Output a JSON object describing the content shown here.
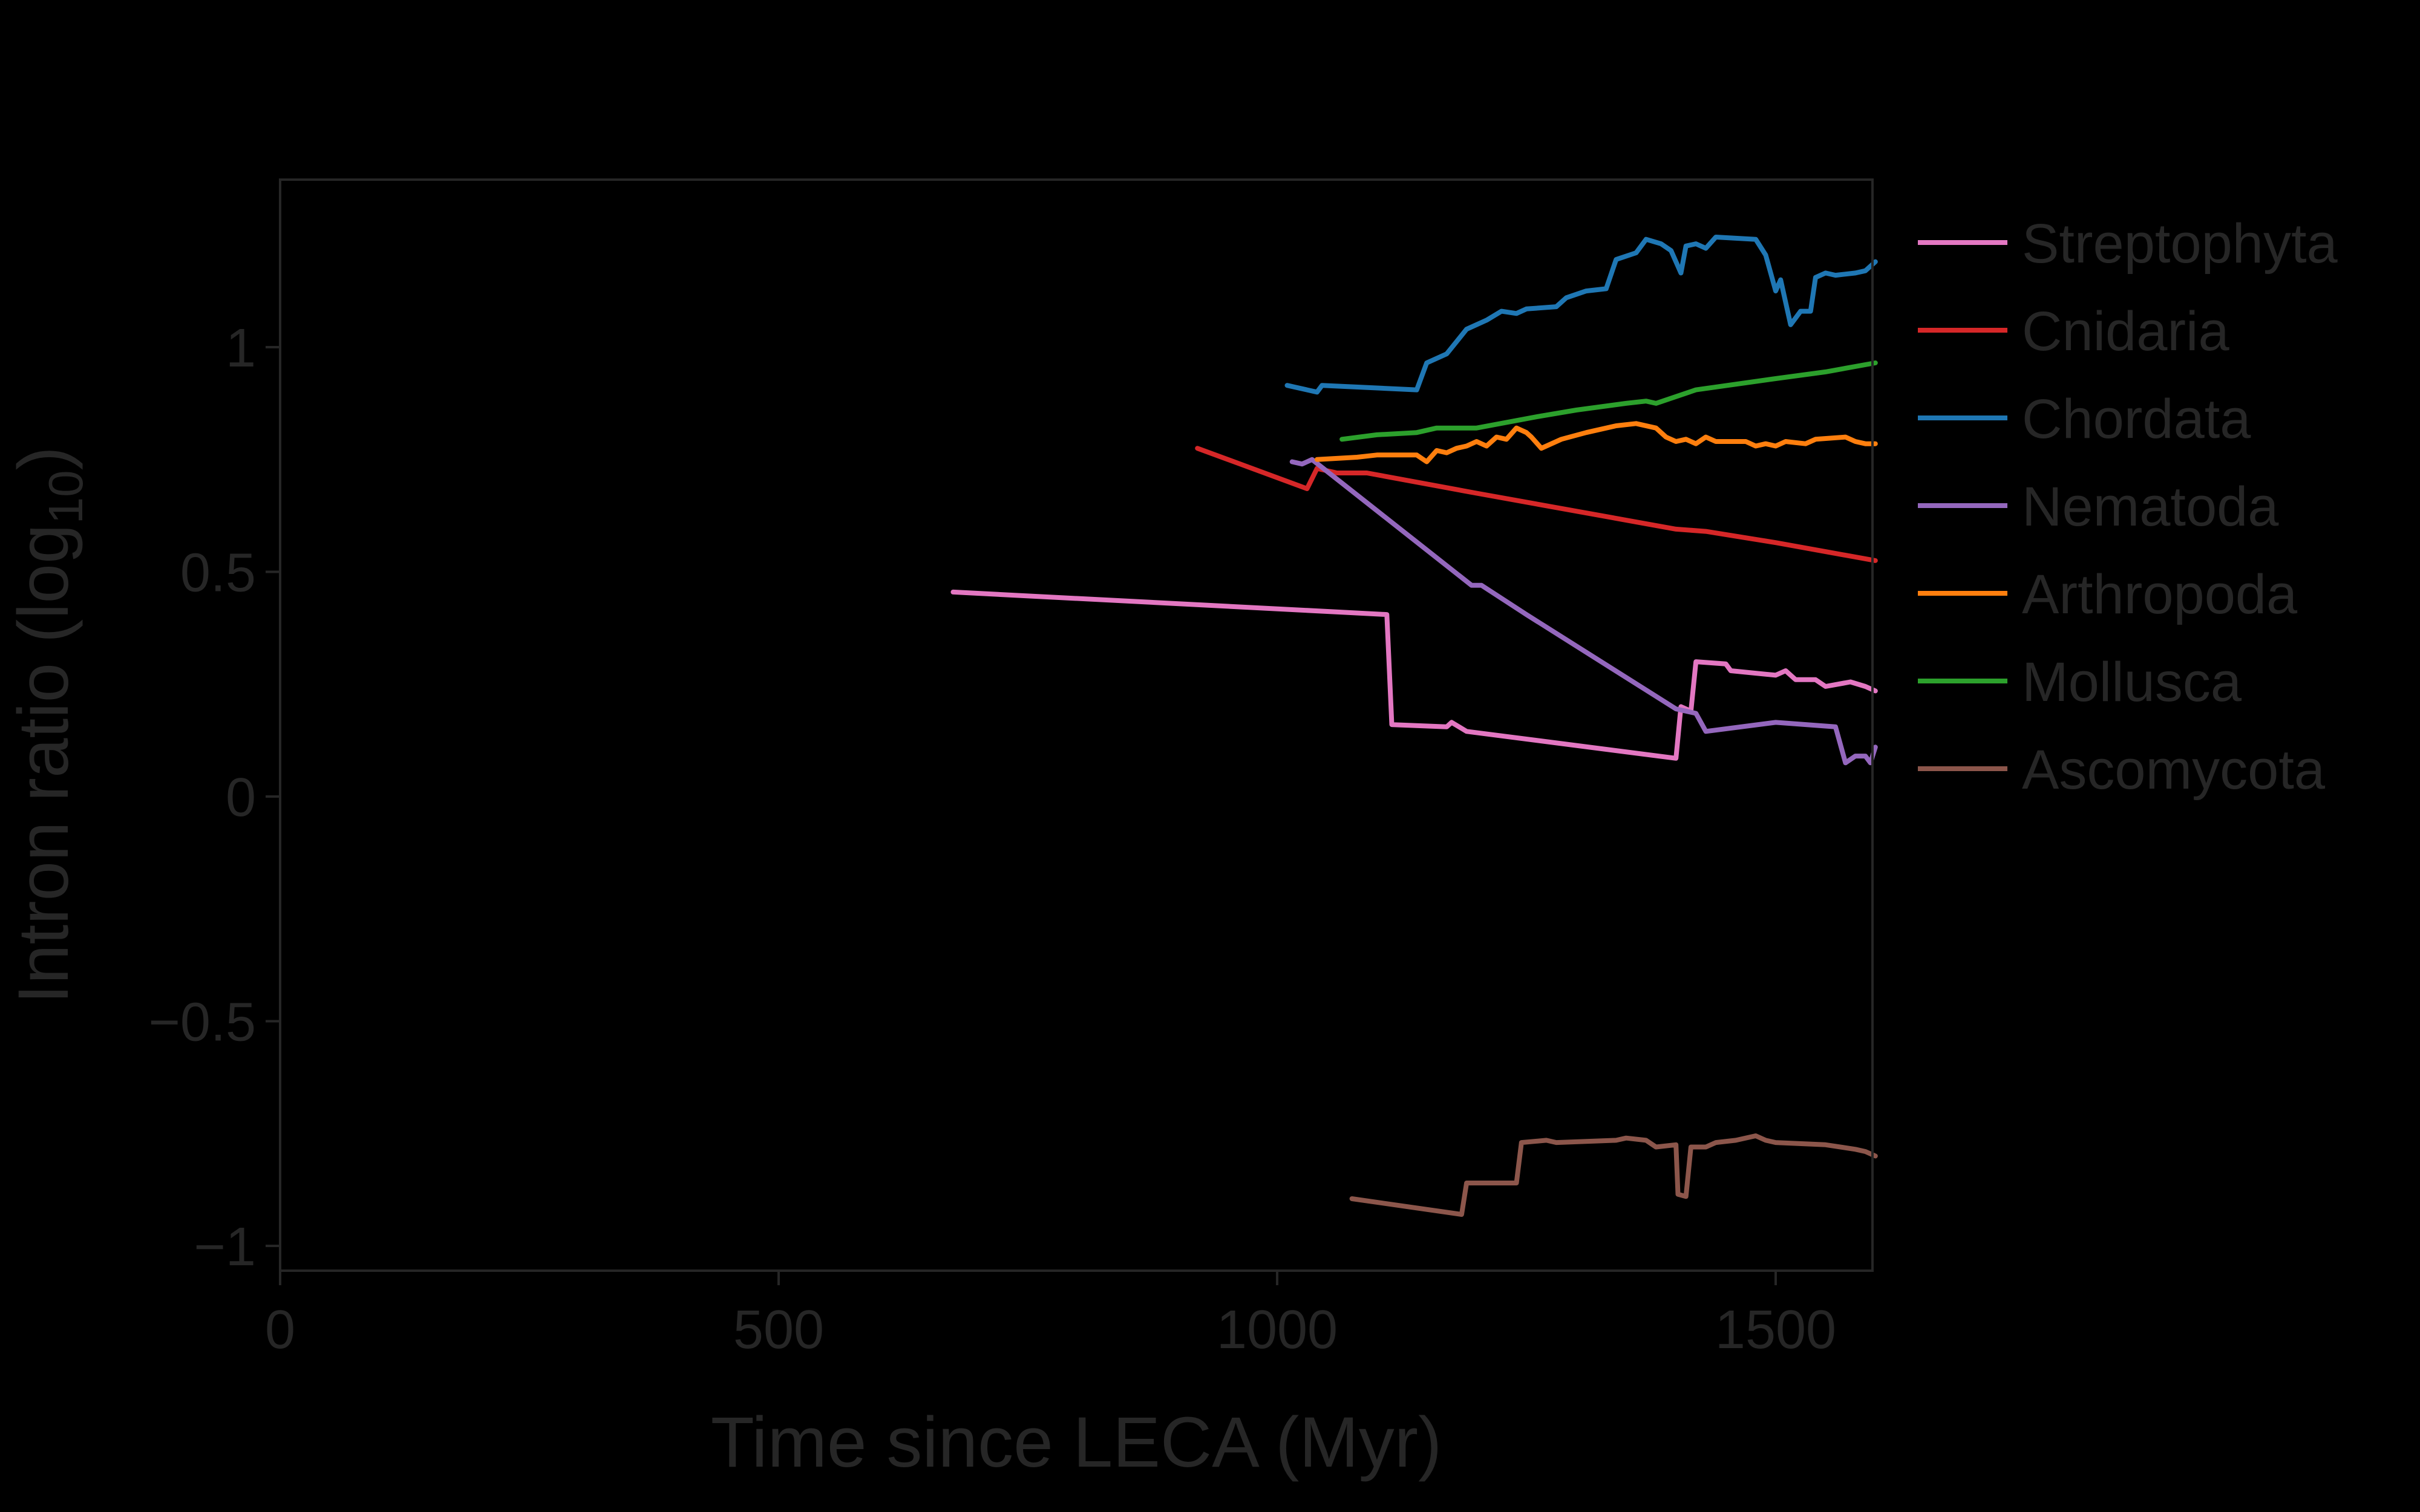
{
  "chart_data": {
    "type": "line",
    "title": "",
    "xlabel": "Time since LECA (Myr)",
    "ylabel_main": "Intron ratio (log",
    "ylabel_sub": "10",
    "ylabel_end": ")",
    "xlim": [
      0,
      1600
    ],
    "ylim": [
      -1.03,
      1.38
    ],
    "x_ticks": [
      0,
      500,
      1000,
      1500
    ],
    "x_tick_labels": [
      "0",
      "500",
      "1000",
      "1500"
    ],
    "y_ticks": [
      1,
      0.5,
      0,
      -0.5,
      -1
    ],
    "y_tick_labels": [
      "1",
      "0.5",
      "0",
      "−0.5",
      "−1"
    ],
    "grid": false,
    "legend_position": "outside-right-top",
    "series": [
      {
        "name": "Streptophyta",
        "color": "#e377c2",
        "points": [
          [
            675,
            0.455
          ],
          [
            1110,
            0.405
          ],
          [
            1115,
            0.16
          ],
          [
            1170,
            0.155
          ],
          [
            1175,
            0.165
          ],
          [
            1190,
            0.145
          ],
          [
            1400,
            0.085
          ],
          [
            1405,
            0.2
          ],
          [
            1415,
            0.19
          ],
          [
            1420,
            0.3
          ],
          [
            1450,
            0.295
          ],
          [
            1455,
            0.28
          ],
          [
            1500,
            0.27
          ],
          [
            1510,
            0.28
          ],
          [
            1520,
            0.26
          ],
          [
            1540,
            0.26
          ],
          [
            1550,
            0.245
          ],
          [
            1575,
            0.255
          ],
          [
            1590,
            0.245
          ],
          [
            1600,
            0.235
          ]
        ]
      },
      {
        "name": "Cnidaria",
        "color": "#d62728",
        "points": [
          [
            920,
            0.775
          ],
          [
            1030,
            0.685
          ],
          [
            1040,
            0.73
          ],
          [
            1060,
            0.72
          ],
          [
            1090,
            0.72
          ],
          [
            1200,
            0.675
          ],
          [
            1300,
            0.635
          ],
          [
            1400,
            0.595
          ],
          [
            1430,
            0.59
          ],
          [
            1500,
            0.565
          ],
          [
            1550,
            0.545
          ],
          [
            1600,
            0.525
          ]
        ]
      },
      {
        "name": "Chordata",
        "color": "#1f77b4",
        "points": [
          [
            1010,
            0.915
          ],
          [
            1030,
            0.905
          ],
          [
            1040,
            0.9
          ],
          [
            1045,
            0.915
          ],
          [
            1140,
            0.905
          ],
          [
            1150,
            0.965
          ],
          [
            1170,
            0.985
          ],
          [
            1190,
            1.04
          ],
          [
            1210,
            1.06
          ],
          [
            1225,
            1.08
          ],
          [
            1240,
            1.075
          ],
          [
            1250,
            1.085
          ],
          [
            1280,
            1.09
          ],
          [
            1290,
            1.11
          ],
          [
            1310,
            1.125
          ],
          [
            1330,
            1.13
          ],
          [
            1340,
            1.195
          ],
          [
            1360,
            1.21
          ],
          [
            1370,
            1.24
          ],
          [
            1385,
            1.23
          ],
          [
            1395,
            1.215
          ],
          [
            1405,
            1.165
          ],
          [
            1410,
            1.225
          ],
          [
            1420,
            1.23
          ],
          [
            1430,
            1.22
          ],
          [
            1440,
            1.245
          ],
          [
            1480,
            1.24
          ],
          [
            1490,
            1.205
          ],
          [
            1500,
            1.125
          ],
          [
            1505,
            1.15
          ],
          [
            1515,
            1.05
          ],
          [
            1525,
            1.08
          ],
          [
            1535,
            1.08
          ],
          [
            1540,
            1.155
          ],
          [
            1550,
            1.165
          ],
          [
            1560,
            1.16
          ],
          [
            1580,
            1.165
          ],
          [
            1590,
            1.17
          ],
          [
            1600,
            1.19
          ]
        ]
      },
      {
        "name": "Nematoda",
        "color": "#9467bd",
        "points": [
          [
            1015,
            0.745
          ],
          [
            1025,
            0.74
          ],
          [
            1035,
            0.75
          ],
          [
            1195,
            0.47
          ],
          [
            1205,
            0.47
          ],
          [
            1250,
            0.405
          ],
          [
            1400,
            0.195
          ],
          [
            1420,
            0.185
          ],
          [
            1430,
            0.145
          ],
          [
            1500,
            0.165
          ],
          [
            1560,
            0.155
          ],
          [
            1570,
            0.075
          ],
          [
            1580,
            0.09
          ],
          [
            1590,
            0.09
          ],
          [
            1595,
            0.075
          ],
          [
            1600,
            0.11
          ]
        ]
      },
      {
        "name": "Arthropoda",
        "color": "#ff7f0e",
        "points": [
          [
            1040,
            0.75
          ],
          [
            1080,
            0.755
          ],
          [
            1100,
            0.76
          ],
          [
            1140,
            0.76
          ],
          [
            1150,
            0.745
          ],
          [
            1160,
            0.77
          ],
          [
            1170,
            0.765
          ],
          [
            1180,
            0.775
          ],
          [
            1190,
            0.78
          ],
          [
            1200,
            0.79
          ],
          [
            1210,
            0.78
          ],
          [
            1220,
            0.8
          ],
          [
            1230,
            0.795
          ],
          [
            1240,
            0.82
          ],
          [
            1250,
            0.81
          ],
          [
            1255,
            0.8
          ],
          [
            1265,
            0.775
          ],
          [
            1285,
            0.795
          ],
          [
            1310,
            0.81
          ],
          [
            1340,
            0.825
          ],
          [
            1360,
            0.83
          ],
          [
            1380,
            0.82
          ],
          [
            1390,
            0.8
          ],
          [
            1400,
            0.79
          ],
          [
            1410,
            0.795
          ],
          [
            1420,
            0.785
          ],
          [
            1430,
            0.8
          ],
          [
            1440,
            0.79
          ],
          [
            1470,
            0.79
          ],
          [
            1480,
            0.78
          ],
          [
            1490,
            0.785
          ],
          [
            1500,
            0.78
          ],
          [
            1510,
            0.79
          ],
          [
            1530,
            0.785
          ],
          [
            1540,
            0.795
          ],
          [
            1570,
            0.8
          ],
          [
            1580,
            0.79
          ],
          [
            1590,
            0.785
          ],
          [
            1600,
            0.785
          ]
        ]
      },
      {
        "name": "Mollusca",
        "color": "#2ca02c",
        "points": [
          [
            1065,
            0.795
          ],
          [
            1100,
            0.805
          ],
          [
            1140,
            0.81
          ],
          [
            1160,
            0.82
          ],
          [
            1200,
            0.82
          ],
          [
            1260,
            0.845
          ],
          [
            1300,
            0.86
          ],
          [
            1350,
            0.875
          ],
          [
            1370,
            0.88
          ],
          [
            1380,
            0.875
          ],
          [
            1420,
            0.905
          ],
          [
            1500,
            0.93
          ],
          [
            1550,
            0.945
          ],
          [
            1600,
            0.965
          ]
        ]
      },
      {
        "name": "Ascomycota",
        "color": "#8c564b",
        "points": [
          [
            1075,
            -0.895
          ],
          [
            1185,
            -0.93
          ],
          [
            1190,
            -0.86
          ],
          [
            1240,
            -0.86
          ],
          [
            1245,
            -0.77
          ],
          [
            1270,
            -0.765
          ],
          [
            1280,
            -0.77
          ],
          [
            1340,
            -0.765
          ],
          [
            1350,
            -0.76
          ],
          [
            1370,
            -0.765
          ],
          [
            1380,
            -0.78
          ],
          [
            1400,
            -0.775
          ],
          [
            1402,
            -0.885
          ],
          [
            1410,
            -0.89
          ],
          [
            1415,
            -0.78
          ],
          [
            1430,
            -0.78
          ],
          [
            1440,
            -0.77
          ],
          [
            1460,
            -0.765
          ],
          [
            1480,
            -0.755
          ],
          [
            1490,
            -0.765
          ],
          [
            1500,
            -0.77
          ],
          [
            1550,
            -0.775
          ],
          [
            1580,
            -0.785
          ],
          [
            1590,
            -0.79
          ],
          [
            1600,
            -0.8
          ]
        ]
      }
    ]
  }
}
